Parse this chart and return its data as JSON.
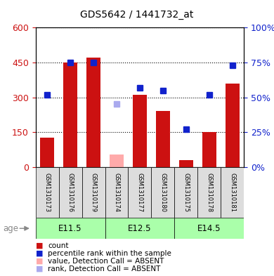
{
  "title": "GDS5642 / 1441732_at",
  "samples": [
    "GSM1310173",
    "GSM1310176",
    "GSM1310179",
    "GSM1310174",
    "GSM1310177",
    "GSM1310180",
    "GSM1310175",
    "GSM1310178",
    "GSM1310181"
  ],
  "age_groups": [
    {
      "label": "E11.5",
      "start": 0,
      "end": 3
    },
    {
      "label": "E12.5",
      "start": 3,
      "end": 6
    },
    {
      "label": "E14.5",
      "start": 6,
      "end": 9
    }
  ],
  "count_values": [
    125,
    450,
    470,
    0,
    310,
    240,
    30,
    150,
    360
  ],
  "count_absent": [
    false,
    false,
    false,
    true,
    false,
    false,
    false,
    false,
    false
  ],
  "count_absent_values": [
    0,
    0,
    0,
    55,
    0,
    0,
    0,
    0,
    0
  ],
  "rank_values": [
    52,
    75,
    75,
    0,
    57,
    55,
    27,
    52,
    73
  ],
  "rank_absent": [
    false,
    false,
    false,
    true,
    false,
    false,
    false,
    false,
    false
  ],
  "rank_absent_values": [
    0,
    0,
    0,
    45,
    0,
    0,
    0,
    0,
    0
  ],
  "ylim_left": [
    0,
    600
  ],
  "ylim_right": [
    0,
    100
  ],
  "yticks_left": [
    0,
    150,
    300,
    450,
    600
  ],
  "yticks_right": [
    0,
    25,
    50,
    75,
    100
  ],
  "bar_color": "#cc1111",
  "bar_absent_color": "#ffaaaa",
  "rank_color": "#1122cc",
  "rank_absent_color": "#aaaaee",
  "age_bg_color": "#aaffaa",
  "sample_bg_color": "#dddddd",
  "title_color": "black",
  "left_axis_color": "#cc1111",
  "right_axis_color": "#1122cc",
  "fig_width": 3.9,
  "fig_height": 3.93,
  "dpi": 100
}
